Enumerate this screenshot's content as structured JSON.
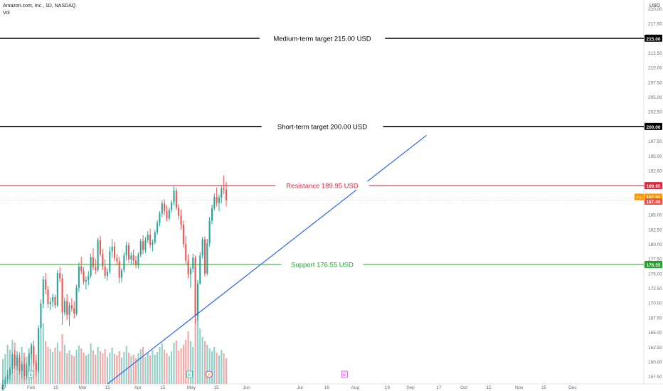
{
  "header": {
    "symbol_line": "Amazon.com, Inc., 1D, NASDAQ",
    "indicator": "Vol"
  },
  "currency_label": "USD",
  "chart_data": {
    "type": "candlestick",
    "title": "Amazon.com, Inc., 1D, NASDAQ",
    "y_axis_unit": "USD",
    "ylim": [
      156.25,
      221.5
    ],
    "y_ticks": [
      157.5,
      160.0,
      162.5,
      165.0,
      167.5,
      170.0,
      172.5,
      175.0,
      177.5,
      180.0,
      182.5,
      185.0,
      187.5,
      190.0,
      192.5,
      195.0,
      197.5,
      202.5,
      205.0,
      207.5,
      210.0,
      212.5,
      217.5,
      220.0
    ],
    "y_tick_labels": [
      "157.50",
      "160.00",
      "162.50",
      "165.00",
      "167.50",
      "170.00",
      "172.50",
      "175.00",
      "177.50",
      "180.00",
      "182.50",
      "185.00",
      "187.50",
      "190.00",
      "192.50",
      "195.00",
      "197.50",
      "202.50",
      "205.00",
      "207.50",
      "210.00",
      "212.50",
      "217.50",
      "220.00"
    ],
    "x_tick_labels": [
      "17",
      "Feb",
      "15",
      "Mar",
      "15",
      "Apr",
      "15",
      "May",
      "15",
      "Jun",
      "Jul",
      "16",
      "Aug",
      "19",
      "Sep",
      "17",
      "Oct",
      "15",
      "Nov",
      "15",
      "Dec"
    ],
    "x_date_range": [
      "2024-01-17",
      "2024-12-31"
    ],
    "x_tick_dates": [
      "2024-01-17",
      "2024-02-01",
      "2024-02-15",
      "2024-03-01",
      "2024-03-15",
      "2024-04-01",
      "2024-04-15",
      "2024-05-01",
      "2024-05-15",
      "2024-06-01",
      "2024-07-01",
      "2024-07-16",
      "2024-08-01",
      "2024-08-19",
      "2024-09-01",
      "2024-09-17",
      "2024-10-01",
      "2024-10-15",
      "2024-11-01",
      "2024-11-15",
      "2024-12-01"
    ],
    "levels": [
      {
        "label": "Medium-term target 215.00 USD",
        "price": 215.0,
        "badge": "215.00",
        "color": "#000000"
      },
      {
        "label": "Short-term target 200.00 USD",
        "price": 200.0,
        "badge": "200.00",
        "color": "#000000"
      },
      {
        "label": "Resistance 189.95 USD",
        "price": 189.95,
        "badge": "189.95",
        "color": "#e0283c"
      },
      {
        "label": "Support 176.55 USD",
        "price": 176.55,
        "badge": "176.55",
        "color": "#22a32a"
      }
    ],
    "price_badges": [
      {
        "tag": "Pre",
        "value": "187.93",
        "price": 187.93,
        "color": "#ff9800"
      },
      {
        "value": "187.48",
        "price": 187.48,
        "color": "#f0504a"
      }
    ],
    "trendline": {
      "start": [
        "2024-03-15",
        156.25
      ],
      "end": [
        "2024-09-10",
        198.5
      ],
      "color": "#2962ff"
    },
    "candles": [
      [
        155.3,
        157.0,
        154.9,
        156.2
      ],
      [
        156.2,
        157.5,
        155.6,
        157.0
      ],
      [
        157.0,
        158.6,
        156.3,
        157.8
      ],
      [
        157.8,
        159.2,
        156.9,
        158.8
      ],
      [
        158.8,
        161.5,
        158.0,
        161.2
      ],
      [
        161.2,
        162.0,
        158.8,
        159.3
      ],
      [
        159.3,
        161.2,
        158.6,
        160.7
      ],
      [
        160.7,
        161.6,
        157.9,
        158.4
      ],
      [
        158.4,
        160.1,
        157.2,
        159.6
      ],
      [
        159.6,
        160.8,
        156.8,
        157.6
      ],
      [
        157.6,
        159.8,
        157.0,
        159.3
      ],
      [
        159.3,
        161.6,
        158.5,
        161.3
      ],
      [
        161.3,
        163.2,
        160.5,
        162.7
      ],
      [
        162.7,
        163.6,
        159.3,
        159.8
      ],
      [
        159.8,
        160.3,
        157.6,
        158.5
      ],
      [
        158.5,
        166.2,
        158.1,
        165.7
      ],
      [
        165.7,
        170.6,
        164.9,
        169.9
      ],
      [
        169.9,
        174.6,
        169.1,
        174.0
      ],
      [
        174.0,
        175.1,
        171.5,
        172.3
      ],
      [
        172.3,
        172.9,
        169.2,
        169.8
      ],
      [
        169.8,
        170.9,
        168.8,
        170.2
      ],
      [
        170.2,
        171.6,
        169.3,
        171.0
      ],
      [
        171.0,
        171.4,
        169.1,
        169.6
      ],
      [
        169.6,
        175.6,
        169.3,
        175.1
      ],
      [
        175.1,
        176.1,
        173.6,
        174.2
      ],
      [
        174.2,
        174.9,
        166.3,
        168.4
      ],
      [
        168.4,
        170.9,
        167.9,
        170.3
      ],
      [
        170.3,
        171.5,
        167.1,
        168.0
      ],
      [
        168.0,
        170.1,
        166.1,
        169.6
      ],
      [
        169.6,
        170.8,
        168.5,
        169.1
      ],
      [
        169.1,
        170.3,
        167.4,
        168.2
      ],
      [
        168.2,
        173.1,
        167.9,
        172.6
      ],
      [
        172.6,
        176.9,
        171.9,
        176.2
      ],
      [
        176.2,
        177.8,
        174.9,
        175.4
      ],
      [
        175.4,
        176.1,
        173.1,
        173.6
      ],
      [
        173.6,
        174.5,
        172.3,
        173.9
      ],
      [
        173.9,
        175.4,
        173.0,
        174.6
      ],
      [
        174.6,
        178.4,
        174.2,
        177.8
      ],
      [
        177.8,
        179.3,
        175.6,
        176.1
      ],
      [
        176.1,
        177.5,
        174.9,
        175.6
      ],
      [
        175.6,
        181.1,
        175.3,
        180.7
      ],
      [
        180.7,
        181.4,
        177.9,
        178.3
      ],
      [
        178.3,
        179.2,
        175.6,
        176.2
      ],
      [
        176.2,
        177.4,
        174.1,
        174.6
      ],
      [
        174.6,
        175.9,
        173.8,
        175.3
      ],
      [
        175.3,
        179.6,
        175.0,
        178.8
      ],
      [
        178.8,
        180.9,
        177.7,
        179.6
      ],
      [
        179.6,
        180.4,
        177.1,
        177.6
      ],
      [
        177.6,
        178.3,
        176.4,
        177.1
      ],
      [
        177.1,
        177.8,
        173.4,
        174.3
      ],
      [
        174.3,
        175.9,
        173.5,
        175.6
      ],
      [
        175.6,
        178.6,
        175.2,
        178.1
      ],
      [
        178.1,
        180.4,
        177.2,
        179.8
      ],
      [
        179.8,
        180.3,
        176.8,
        177.4
      ],
      [
        177.4,
        178.6,
        176.6,
        178.1
      ],
      [
        178.1,
        179.1,
        176.6,
        177.2
      ],
      [
        177.2,
        178.0,
        175.9,
        176.4
      ],
      [
        176.4,
        178.6,
        175.9,
        178.2
      ],
      [
        178.2,
        180.9,
        177.8,
        180.5
      ],
      [
        180.5,
        181.5,
        178.3,
        179.0
      ],
      [
        179.0,
        181.2,
        178.5,
        180.7
      ],
      [
        180.7,
        182.2,
        180.2,
        181.6
      ],
      [
        181.6,
        182.6,
        179.3,
        179.9
      ],
      [
        179.9,
        180.8,
        178.8,
        180.3
      ],
      [
        180.3,
        182.4,
        180.0,
        182.0
      ],
      [
        182.0,
        184.1,
        181.6,
        183.6
      ],
      [
        183.6,
        185.6,
        183.0,
        185.2
      ],
      [
        185.2,
        187.4,
        184.6,
        186.9
      ],
      [
        186.9,
        187.6,
        184.9,
        185.6
      ],
      [
        185.6,
        186.6,
        183.9,
        184.4
      ],
      [
        184.4,
        186.2,
        184.1,
        185.8
      ],
      [
        185.8,
        187.5,
        185.3,
        187.1
      ],
      [
        187.1,
        189.8,
        186.6,
        189.1
      ],
      [
        189.1,
        189.6,
        185.8,
        186.2
      ],
      [
        186.2,
        186.8,
        184.2,
        184.8
      ],
      [
        184.8,
        185.9,
        182.5,
        183.3
      ],
      [
        183.3,
        184.0,
        179.4,
        180.0
      ],
      [
        180.0,
        181.4,
        176.6,
        177.2
      ],
      [
        177.2,
        178.3,
        174.2,
        174.9
      ],
      [
        174.9,
        176.2,
        172.6,
        175.8
      ],
      [
        175.8,
        178.4,
        175.2,
        177.7
      ],
      [
        177.7,
        178.1,
        166.5,
        167.8
      ],
      [
        167.8,
        173.9,
        167.0,
        173.3
      ],
      [
        173.3,
        178.6,
        173.1,
        178.1
      ],
      [
        178.1,
        181.2,
        177.6,
        180.8
      ],
      [
        180.8,
        181.3,
        174.5,
        175.0
      ],
      [
        175.0,
        180.9,
        174.7,
        180.2
      ],
      [
        180.2,
        184.6,
        179.6,
        184.0
      ],
      [
        184.0,
        186.7,
        183.4,
        186.1
      ],
      [
        186.1,
        188.6,
        185.7,
        188.0
      ],
      [
        188.0,
        189.6,
        186.4,
        187.0
      ],
      [
        187.0,
        188.4,
        185.6,
        187.9
      ],
      [
        187.9,
        189.9,
        186.9,
        189.5
      ],
      [
        189.5,
        191.7,
        188.5,
        189.3
      ],
      [
        189.3,
        190.6,
        186.4,
        187.5
      ]
    ],
    "volume_note": "Volume histogram shown as relative heights only (no scale printed)",
    "volume_relative": [
      0.35,
      0.42,
      0.55,
      0.48,
      0.62,
      0.58,
      0.46,
      0.4,
      0.52,
      0.44,
      0.38,
      0.5,
      0.56,
      0.47,
      0.41,
      0.63,
      0.72,
      0.85,
      0.6,
      0.52,
      0.49,
      0.45,
      0.51,
      0.58,
      0.46,
      0.7,
      0.55,
      0.43,
      0.47,
      0.41,
      0.39,
      0.48,
      0.54,
      0.5,
      0.44,
      0.4,
      0.42,
      0.57,
      0.47,
      0.41,
      0.52,
      0.46,
      0.43,
      0.49,
      0.38,
      0.44,
      0.51,
      0.42,
      0.4,
      0.46,
      0.37,
      0.45,
      0.53,
      0.44,
      0.39,
      0.41,
      0.36,
      0.43,
      0.49,
      0.52,
      0.38,
      0.44,
      0.4,
      0.47,
      0.41,
      0.45,
      0.52,
      0.57,
      0.48,
      0.43,
      0.39,
      0.46,
      0.58,
      0.61,
      0.47,
      0.5,
      0.55,
      0.62,
      0.74,
      0.6,
      0.52,
      0.92,
      1.0,
      0.78,
      0.66,
      0.6,
      0.55,
      0.5,
      0.46,
      0.52,
      0.44,
      0.4,
      0.48,
      0.43,
      0.36
    ],
    "event_markers": [
      {
        "date": "2024-02-01",
        "label": "E"
      },
      {
        "date": "2024-04-30",
        "label": "E"
      },
      {
        "date": "2024-05-11",
        "label": "⚡"
      },
      {
        "date": "2024-07-26",
        "label": "E"
      }
    ],
    "colors": {
      "up": "#26a69a",
      "down": "#ef5350",
      "volume_up": "#90d0c8",
      "volume_down": "#f4a6a4"
    }
  }
}
